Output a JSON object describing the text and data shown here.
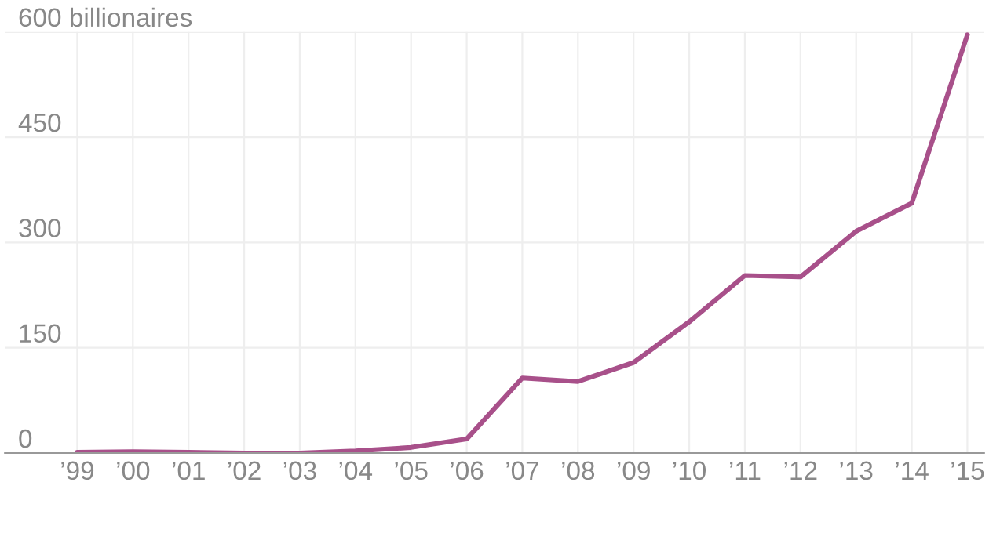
{
  "chart_data": {
    "type": "line",
    "categories": [
      "’99",
      "’00",
      "’01",
      "’02",
      "’03",
      "’04",
      "’05",
      "’06",
      "’07",
      "’08",
      "’09",
      "’10",
      "’11",
      "’12",
      "’13",
      "’14",
      "’15"
    ],
    "series": [
      {
        "color": "#a8508a",
        "values": [
          1,
          2,
          1,
          0,
          0,
          3,
          8,
          20,
          107,
          102,
          129,
          187,
          253,
          251,
          316,
          356,
          596
        ]
      }
    ],
    "ylim": [
      0,
      600
    ],
    "yticks": [
      0,
      150,
      300,
      450,
      {
        "value": 600,
        "label": "600 billionaires"
      }
    ],
    "grid": true,
    "marker": "none",
    "line_style": "solid"
  }
}
